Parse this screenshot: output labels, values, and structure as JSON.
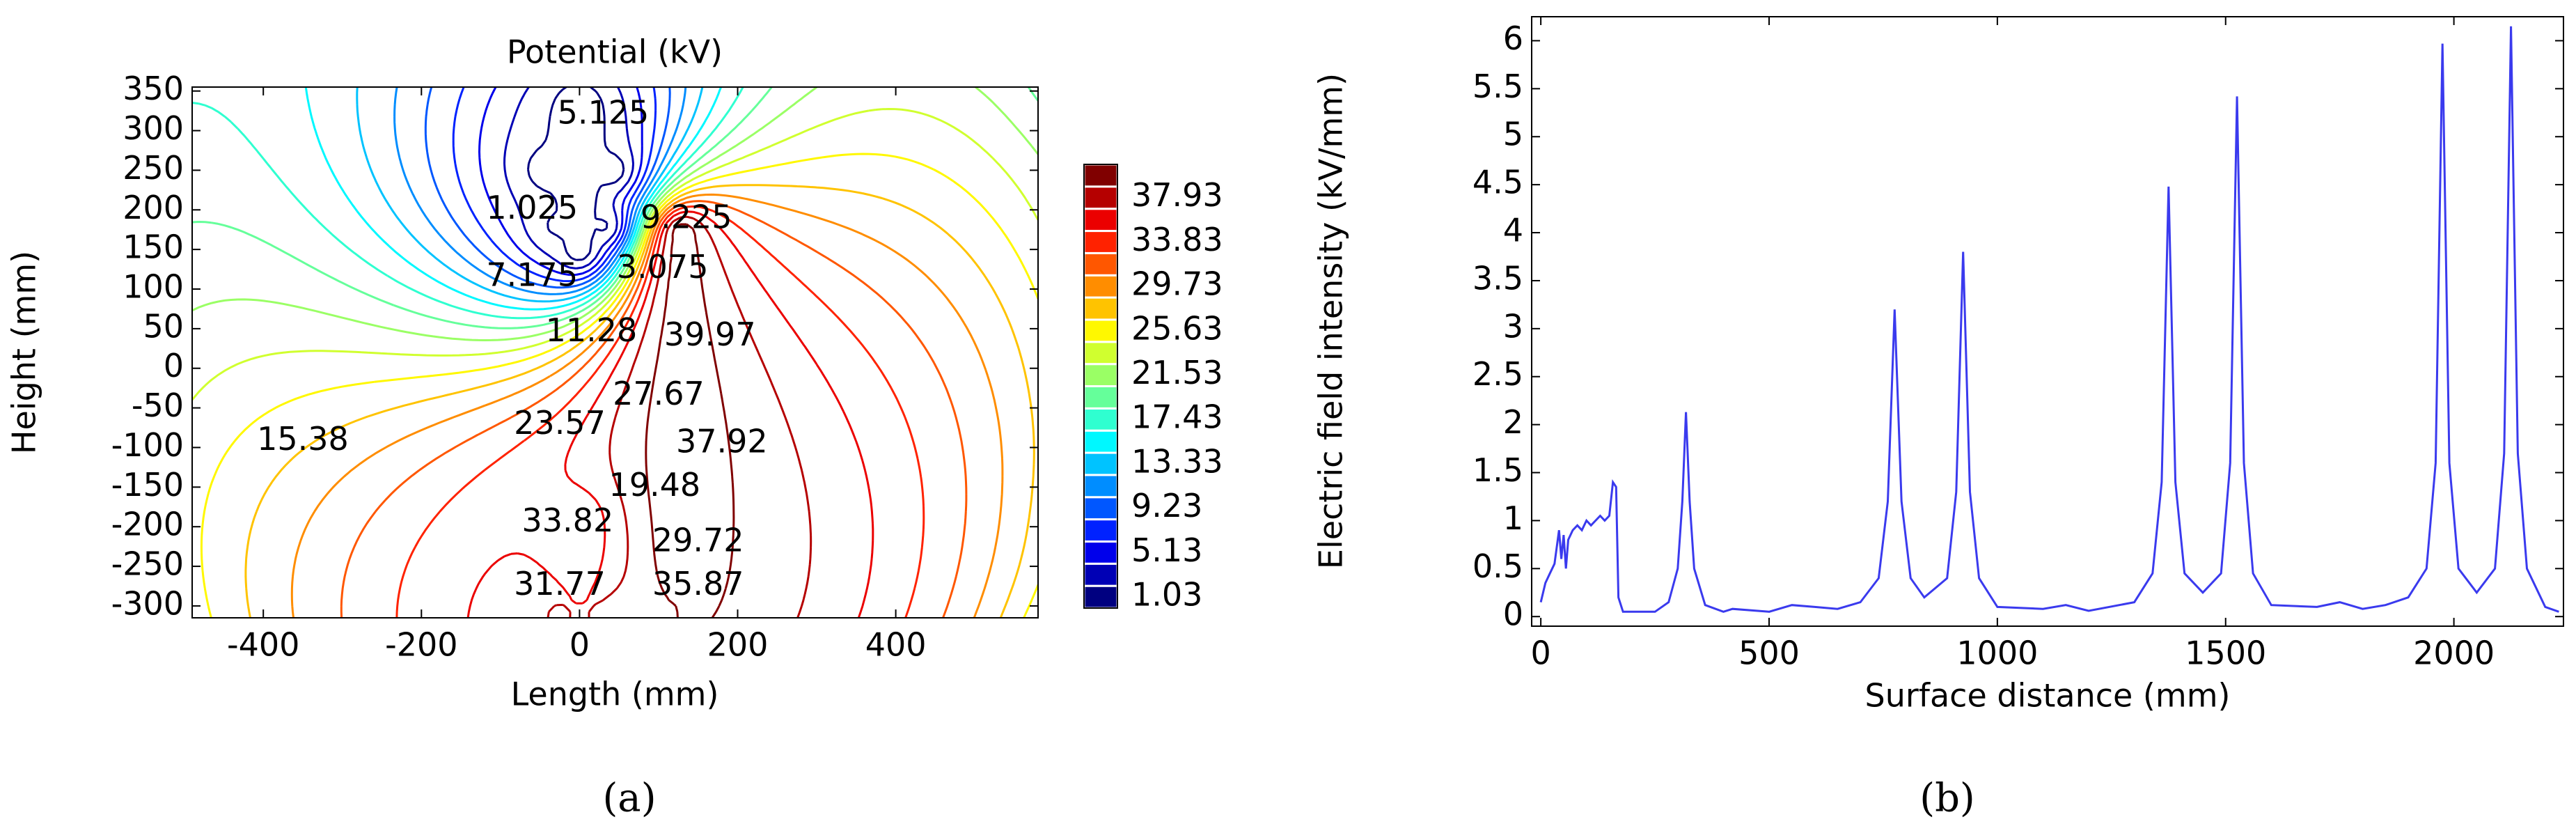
{
  "chart_data": [
    {
      "type": "contour",
      "label": "(a)",
      "title": "Potential (kV)",
      "xlabel": "Length (mm)",
      "ylabel": "Height (mm)",
      "xlim": [
        -490,
        580
      ],
      "xticks": [
        -400,
        -200,
        0,
        200,
        400
      ],
      "ylim": [
        -315,
        355
      ],
      "yticks": [
        -300,
        -250,
        -200,
        -150,
        -100,
        -50,
        0,
        50,
        100,
        150,
        200,
        250,
        300,
        350
      ],
      "levels": [
        1.025,
        3.075,
        5.125,
        7.175,
        9.225,
        11.275,
        13.325,
        15.375,
        17.425,
        19.475,
        21.525,
        23.575,
        25.625,
        27.675,
        29.725,
        31.775,
        33.825,
        35.875,
        37.925,
        39.975
      ],
      "colorbar_ticks": [
        1.03,
        5.13,
        9.23,
        13.33,
        17.43,
        21.53,
        25.63,
        29.73,
        33.83,
        37.93
      ],
      "contour_labels": [
        {
          "label": "5.125",
          "x": 30,
          "y": 320
        },
        {
          "label": "1.025",
          "x": -60,
          "y": 200
        },
        {
          "label": "9.225",
          "x": 135,
          "y": 188
        },
        {
          "label": "7.175",
          "x": -60,
          "y": 115
        },
        {
          "label": "3.075",
          "x": 105,
          "y": 125
        },
        {
          "label": "11.28",
          "x": 15,
          "y": 45
        },
        {
          "label": "39.97",
          "x": 165,
          "y": 40
        },
        {
          "label": "27.67",
          "x": 100,
          "y": -35
        },
        {
          "label": "15.38",
          "x": -350,
          "y": -92
        },
        {
          "label": "23.57",
          "x": -25,
          "y": -72
        },
        {
          "label": "37.92",
          "x": 180,
          "y": -95
        },
        {
          "label": "19.48",
          "x": 95,
          "y": -150
        },
        {
          "label": "33.82",
          "x": -15,
          "y": -195
        },
        {
          "label": "29.72",
          "x": 150,
          "y": -220
        },
        {
          "label": "31.77",
          "x": -25,
          "y": -275
        },
        {
          "label": "35.87",
          "x": 150,
          "y": -275
        }
      ]
    },
    {
      "type": "line",
      "label": "(b)",
      "xlabel": "Surface distance (mm)",
      "ylabel": "Electric field intensity (kV/mm)",
      "color": "#3a3aee",
      "xlim": [
        -20,
        2240
      ],
      "xticks": [
        0,
        500,
        1000,
        1500,
        2000
      ],
      "ylim": [
        -0.1,
        6.25
      ],
      "yticks": [
        0,
        0.5,
        1,
        1.5,
        2,
        2.5,
        3,
        3.5,
        4,
        4.5,
        5,
        5.5,
        6
      ],
      "x": [
        0,
        10,
        20,
        30,
        40,
        45,
        50,
        55,
        60,
        70,
        80,
        90,
        100,
        110,
        120,
        130,
        140,
        150,
        158,
        165,
        170,
        180,
        250,
        280,
        300,
        310,
        318,
        326,
        336,
        360,
        400,
        420,
        500,
        550,
        600,
        650,
        700,
        740,
        760,
        775,
        790,
        810,
        840,
        890,
        910,
        925,
        940,
        960,
        1000,
        1100,
        1150,
        1200,
        1300,
        1340,
        1360,
        1375,
        1390,
        1410,
        1450,
        1490,
        1510,
        1525,
        1540,
        1560,
        1600,
        1700,
        1750,
        1800,
        1850,
        1900,
        1940,
        1960,
        1975,
        1990,
        2010,
        2050,
        2090,
        2110,
        2125,
        2140,
        2160,
        2200,
        2230
      ],
      "values": [
        0.15,
        0.35,
        0.45,
        0.55,
        0.9,
        0.6,
        0.85,
        0.5,
        0.8,
        0.9,
        0.95,
        0.9,
        1.0,
        0.95,
        1.0,
        1.05,
        1.0,
        1.05,
        1.4,
        1.35,
        0.2,
        0.05,
        0.05,
        0.15,
        0.5,
        1.2,
        2.13,
        1.2,
        0.5,
        0.12,
        0.05,
        0.08,
        0.05,
        0.12,
        0.1,
        0.08,
        0.15,
        0.4,
        1.2,
        3.2,
        1.2,
        0.4,
        0.2,
        0.4,
        1.3,
        3.8,
        1.3,
        0.4,
        0.1,
        0.08,
        0.12,
        0.06,
        0.15,
        0.45,
        1.4,
        4.48,
        1.4,
        0.45,
        0.25,
        0.45,
        1.6,
        5.42,
        1.6,
        0.45,
        0.12,
        0.1,
        0.15,
        0.08,
        0.12,
        0.2,
        0.5,
        1.6,
        5.97,
        1.6,
        0.5,
        0.25,
        0.5,
        1.7,
        6.15,
        1.7,
        0.5,
        0.1,
        0.05
      ]
    }
  ]
}
